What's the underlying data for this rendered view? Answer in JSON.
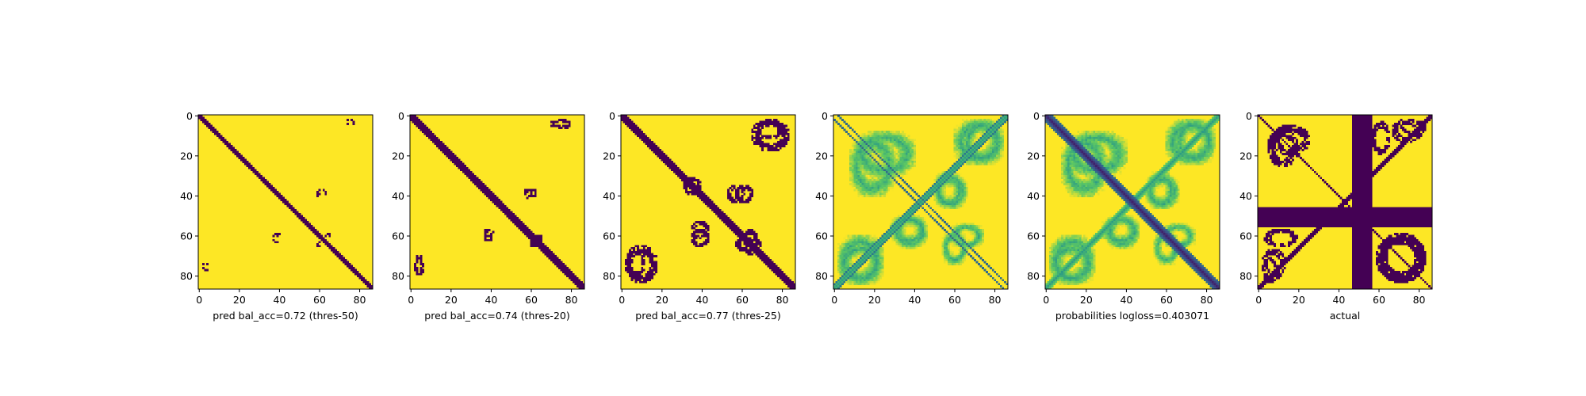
{
  "figure": {
    "background": "#ffffff"
  },
  "chart_data": [
    {
      "type": "heatmap",
      "title": "",
      "xlabel": "pred bal_acc=0.72 (thres-50)",
      "ylabel": "",
      "matrix_size": 87,
      "xlim": [
        0,
        86
      ],
      "ylim": [
        86,
        0
      ],
      "x_ticks": [
        0,
        20,
        40,
        60,
        80
      ],
      "y_ticks": [
        0,
        20,
        40,
        60,
        80
      ],
      "colormap": "viridis",
      "kind": "binary",
      "colors": {
        "one": "#fde725",
        "zero": "#440154"
      },
      "features": {
        "diagonal_band_half_width": 1.5,
        "blobs": [
          {
            "type": "arc",
            "rows": [
              36,
              40
            ],
            "cols": [
              58,
              64
            ]
          },
          {
            "type": "arc",
            "rows": [
              56,
              60
            ],
            "cols": [
              37,
              41
            ]
          },
          {
            "type": "arc",
            "rows": [
              62,
              66
            ],
            "cols": [
              58,
              64
            ]
          },
          {
            "type": "arc",
            "rows": [
              2,
              5
            ],
            "cols": [
              73,
              78
            ]
          },
          {
            "type": "arc",
            "rows": [
              73,
              77
            ],
            "cols": [
              1,
              5
            ]
          }
        ]
      }
    },
    {
      "type": "heatmap",
      "title": "",
      "xlabel": "pred bal_acc=0.74 (thres-20)",
      "ylabel": "",
      "matrix_size": 87,
      "xlim": [
        0,
        86
      ],
      "ylim": [
        86,
        0
      ],
      "x_ticks": [
        0,
        20,
        40,
        60,
        80
      ],
      "y_ticks": [
        0,
        20,
        40,
        60,
        80
      ],
      "colormap": "viridis",
      "kind": "binary",
      "colors": {
        "one": "#fde725",
        "zero": "#440154"
      },
      "features": {
        "diagonal_band_half_width": 2.0,
        "blobs": [
          {
            "type": "arc",
            "rows": [
              36,
              41
            ],
            "cols": [
              57,
              63
            ]
          },
          {
            "type": "arc",
            "rows": [
              56,
              61
            ],
            "cols": [
              36,
              42
            ]
          },
          {
            "type": "arc",
            "rows": [
              60,
              66
            ],
            "cols": [
              59,
              65
            ]
          },
          {
            "type": "arc",
            "rows": [
              2,
              6
            ],
            "cols": [
              69,
              80
            ]
          },
          {
            "type": "arc",
            "rows": [
              72,
              80
            ],
            "cols": [
              1,
              7
            ]
          }
        ]
      }
    },
    {
      "type": "heatmap",
      "title": "",
      "xlabel": "pred bal_acc=0.77 (thres-25)",
      "ylabel": "",
      "matrix_size": 87,
      "xlim": [
        0,
        86
      ],
      "ylim": [
        86,
        0
      ],
      "x_ticks": [
        0,
        20,
        40,
        60,
        80
      ],
      "y_ticks": [
        0,
        20,
        40,
        60,
        80
      ],
      "colormap": "viridis",
      "kind": "binary",
      "colors": {
        "one": "#fde725",
        "zero": "#440154"
      },
      "features": {
        "diagonal_band_half_width": 2.5,
        "blobs": [
          {
            "type": "arc",
            "rows": [
              34,
              44
            ],
            "cols": [
              56,
              66
            ]
          },
          {
            "type": "arc",
            "rows": [
              52,
              62
            ],
            "cols": [
              34,
              44
            ]
          },
          {
            "type": "arc",
            "rows": [
              60,
              68
            ],
            "cols": [
              56,
              70
            ]
          },
          {
            "type": "arc",
            "rows": [
              2,
              12
            ],
            "cols": [
              64,
              82
            ]
          },
          {
            "type": "arc",
            "rows": [
              64,
              84
            ],
            "cols": [
              1,
              18
            ]
          },
          {
            "type": "cross",
            "rows": [
              30,
              40
            ],
            "cols": [
              30,
              40
            ]
          }
        ]
      }
    },
    {
      "type": "heatmap",
      "title": "",
      "xlabel": "",
      "ylabel": "",
      "matrix_size": 87,
      "xlim": [
        0,
        86
      ],
      "ylim": [
        86,
        0
      ],
      "x_ticks": [
        0,
        20,
        40,
        60,
        80
      ],
      "y_ticks": [
        0,
        20,
        40,
        60,
        80
      ],
      "colormap": "viridis",
      "kind": "continuous",
      "features": {
        "double_line_offset": 2,
        "antidiagonal": true,
        "blobs": [
          {
            "type": "arc",
            "rows": [
              8,
              30
            ],
            "cols": [
              10,
              40
            ]
          },
          {
            "type": "arc",
            "rows": [
              28,
              46
            ],
            "cols": [
              50,
              64
            ]
          },
          {
            "type": "arc",
            "rows": [
              50,
              66
            ],
            "cols": [
              30,
              46
            ]
          },
          {
            "type": "arc",
            "rows": [
              54,
              66
            ],
            "cols": [
              58,
              74
            ]
          },
          {
            "type": "arc",
            "rows": [
              2,
              24
            ],
            "cols": [
              64,
              84
            ]
          },
          {
            "type": "arc",
            "rows": [
              60,
              84
            ],
            "cols": [
              2,
              24
            ]
          }
        ]
      }
    },
    {
      "type": "heatmap",
      "title": "",
      "xlabel": "probabilities logloss=0.403071",
      "ylabel": "",
      "matrix_size": 87,
      "xlim": [
        0,
        86
      ],
      "ylim": [
        86,
        0
      ],
      "x_ticks": [
        0,
        20,
        40,
        60,
        80
      ],
      "y_ticks": [
        0,
        20,
        40,
        60,
        80
      ],
      "colormap": "viridis",
      "kind": "continuous",
      "features": {
        "diagonal_band_half_width": 3,
        "antidiagonal": true,
        "blobs": [
          {
            "type": "arc",
            "rows": [
              8,
              30
            ],
            "cols": [
              10,
              40
            ]
          },
          {
            "type": "arc",
            "rows": [
              28,
              46
            ],
            "cols": [
              50,
              64
            ]
          },
          {
            "type": "arc",
            "rows": [
              50,
              66
            ],
            "cols": [
              30,
              46
            ]
          },
          {
            "type": "arc",
            "rows": [
              54,
              66
            ],
            "cols": [
              58,
              74
            ]
          },
          {
            "type": "arc",
            "rows": [
              2,
              24
            ],
            "cols": [
              64,
              84
            ]
          },
          {
            "type": "arc",
            "rows": [
              60,
              84
            ],
            "cols": [
              2,
              24
            ]
          }
        ]
      }
    },
    {
      "type": "heatmap",
      "title": "",
      "xlabel": "actual",
      "ylabel": "",
      "matrix_size": 87,
      "xlim": [
        0,
        86
      ],
      "ylim": [
        86,
        0
      ],
      "x_ticks": [
        0,
        20,
        40,
        60,
        80
      ],
      "y_ticks": [
        0,
        20,
        40,
        60,
        80
      ],
      "colormap": "viridis",
      "kind": "binary",
      "colors": {
        "one": "#fde725",
        "zero": "#440154"
      },
      "features": {
        "diagonal_band_half_width": 0.8,
        "antidiagonal": true,
        "solid_row_band": [
          46,
          55
        ],
        "solid_col_band": [
          47,
          56
        ],
        "blobs": [
          {
            "type": "arc",
            "rows": [
              4,
              20
            ],
            "cols": [
              6,
              26
            ]
          },
          {
            "type": "arc",
            "rows": [
              2,
              10
            ],
            "cols": [
              70,
              84
            ]
          },
          {
            "type": "arc",
            "rows": [
              58,
              84
            ],
            "cols": [
              58,
              84
            ]
          },
          {
            "type": "arc",
            "rows": [
              66,
              82
            ],
            "cols": [
              1,
              14
            ]
          },
          {
            "type": "arc",
            "rows": [
              56,
              66
            ],
            "cols": [
              2,
              20
            ]
          }
        ]
      }
    }
  ]
}
